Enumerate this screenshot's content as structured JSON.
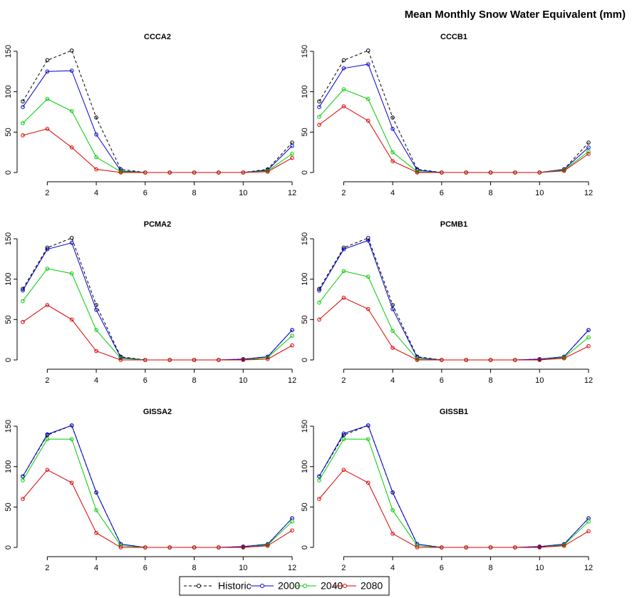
{
  "title": "Mean Monthly Snow Water Equivalent (mm)",
  "legend": "bottom",
  "chart_data": [
    {
      "type": "line",
      "title": "CCCA2",
      "x": [
        1,
        2,
        3,
        4,
        5,
        6,
        7,
        8,
        9,
        10,
        11,
        12
      ],
      "xlim": [
        1,
        12
      ],
      "ylim": [
        0,
        150
      ],
      "xticks": [
        2,
        4,
        6,
        8,
        10,
        12
      ],
      "yticks": [
        0,
        50,
        100,
        150
      ],
      "series": [
        {
          "name": "Historic",
          "color": "#000000",
          "linestyle": "dashed",
          "values": [
            88,
            139,
            151,
            68,
            4,
            0,
            0,
            0,
            0,
            0,
            4,
            37
          ]
        },
        {
          "name": "2000",
          "color": "#0000cc",
          "values": [
            81,
            125,
            126,
            47,
            2,
            0,
            0,
            0,
            0,
            0,
            3,
            33
          ]
        },
        {
          "name": "2040",
          "color": "#00cc00",
          "values": [
            61,
            91,
            76,
            19,
            1,
            0,
            0,
            0,
            0,
            0,
            2,
            23
          ]
        },
        {
          "name": "2080",
          "color": "#dd0000",
          "values": [
            46,
            54,
            31,
            4,
            0,
            0,
            0,
            0,
            0,
            0,
            1,
            18
          ]
        }
      ]
    },
    {
      "type": "line",
      "title": "CCCB1",
      "x": [
        1,
        2,
        3,
        4,
        5,
        6,
        7,
        8,
        9,
        10,
        11,
        12
      ],
      "xlim": [
        1,
        12
      ],
      "ylim": [
        0,
        150
      ],
      "xticks": [
        2,
        4,
        6,
        8,
        10,
        12
      ],
      "yticks": [
        0,
        50,
        100,
        150
      ],
      "series": [
        {
          "name": "Historic",
          "color": "#000000",
          "linestyle": "dashed",
          "values": [
            88,
            139,
            151,
            68,
            4,
            0,
            0,
            0,
            0,
            0,
            4,
            37
          ]
        },
        {
          "name": "2000",
          "color": "#0000cc",
          "values": [
            81,
            129,
            134,
            54,
            3,
            0,
            0,
            0,
            0,
            0,
            4,
            31
          ]
        },
        {
          "name": "2040",
          "color": "#00cc00",
          "values": [
            69,
            103,
            91,
            25,
            1,
            0,
            0,
            0,
            0,
            0,
            3,
            26
          ]
        },
        {
          "name": "2080",
          "color": "#dd0000",
          "values": [
            59,
            82,
            64,
            14,
            0,
            0,
            0,
            0,
            0,
            0,
            2,
            23
          ]
        }
      ]
    },
    {
      "type": "line",
      "title": "PCMA2",
      "x": [
        1,
        2,
        3,
        4,
        5,
        6,
        7,
        8,
        9,
        10,
        11,
        12
      ],
      "xlim": [
        1,
        12
      ],
      "ylim": [
        0,
        150
      ],
      "xticks": [
        2,
        4,
        6,
        8,
        10,
        12
      ],
      "yticks": [
        0,
        50,
        100,
        150
      ],
      "series": [
        {
          "name": "Historic",
          "color": "#000000",
          "linestyle": "dashed",
          "values": [
            88,
            139,
            151,
            68,
            4,
            0,
            0,
            0,
            0,
            1,
            4,
            37
          ]
        },
        {
          "name": "2000",
          "color": "#0000cc",
          "values": [
            86,
            137,
            145,
            62,
            3,
            0,
            0,
            0,
            0,
            1,
            4,
            37
          ]
        },
        {
          "name": "2040",
          "color": "#00cc00",
          "values": [
            73,
            113,
            107,
            37,
            2,
            0,
            0,
            0,
            0,
            0,
            3,
            30
          ]
        },
        {
          "name": "2080",
          "color": "#dd0000",
          "values": [
            47,
            68,
            50,
            11,
            0,
            0,
            0,
            0,
            0,
            0,
            1,
            18
          ]
        }
      ]
    },
    {
      "type": "line",
      "title": "PCMB1",
      "x": [
        1,
        2,
        3,
        4,
        5,
        6,
        7,
        8,
        9,
        10,
        11,
        12
      ],
      "xlim": [
        1,
        12
      ],
      "ylim": [
        0,
        150
      ],
      "xticks": [
        2,
        4,
        6,
        8,
        10,
        12
      ],
      "yticks": [
        0,
        50,
        100,
        150
      ],
      "series": [
        {
          "name": "Historic",
          "color": "#000000",
          "linestyle": "dashed",
          "values": [
            88,
            139,
            151,
            68,
            4,
            0,
            0,
            0,
            0,
            1,
            4,
            37
          ]
        },
        {
          "name": "2000",
          "color": "#0000cc",
          "values": [
            86,
            137,
            148,
            63,
            3,
            0,
            0,
            0,
            0,
            1,
            4,
            37
          ]
        },
        {
          "name": "2040",
          "color": "#00cc00",
          "values": [
            71,
            110,
            103,
            36,
            1,
            0,
            0,
            0,
            0,
            0,
            3,
            28
          ]
        },
        {
          "name": "2080",
          "color": "#dd0000",
          "values": [
            50,
            77,
            63,
            15,
            0,
            0,
            0,
            0,
            0,
            0,
            2,
            17
          ]
        }
      ]
    },
    {
      "type": "line",
      "title": "GISSA2",
      "x": [
        1,
        2,
        3,
        4,
        5,
        6,
        7,
        8,
        9,
        10,
        11,
        12
      ],
      "xlim": [
        1,
        12
      ],
      "ylim": [
        0,
        150
      ],
      "xticks": [
        2,
        4,
        6,
        8,
        10,
        12
      ],
      "yticks": [
        0,
        50,
        100,
        150
      ],
      "series": [
        {
          "name": "Historic",
          "color": "#000000",
          "linestyle": "dashed",
          "values": [
            88,
            139,
            151,
            68,
            4,
            0,
            0,
            0,
            0,
            1,
            4,
            36
          ]
        },
        {
          "name": "2000",
          "color": "#0000cc",
          "values": [
            88,
            140,
            151,
            68,
            4,
            0,
            0,
            0,
            0,
            1,
            4,
            36
          ]
        },
        {
          "name": "2040",
          "color": "#00cc00",
          "values": [
            83,
            134,
            134,
            46,
            2,
            0,
            0,
            0,
            0,
            0,
            3,
            32
          ]
        },
        {
          "name": "2080",
          "color": "#dd0000",
          "values": [
            60,
            96,
            80,
            18,
            0,
            0,
            0,
            0,
            0,
            0,
            2,
            21
          ]
        }
      ]
    },
    {
      "type": "line",
      "title": "GISSB1",
      "x": [
        1,
        2,
        3,
        4,
        5,
        6,
        7,
        8,
        9,
        10,
        11,
        12
      ],
      "xlim": [
        1,
        12
      ],
      "ylim": [
        0,
        150
      ],
      "xticks": [
        2,
        4,
        6,
        8,
        10,
        12
      ],
      "yticks": [
        0,
        50,
        100,
        150
      ],
      "series": [
        {
          "name": "Historic",
          "color": "#000000",
          "linestyle": "dashed",
          "values": [
            88,
            139,
            151,
            68,
            4,
            0,
            0,
            0,
            0,
            1,
            4,
            36
          ]
        },
        {
          "name": "2000",
          "color": "#0000cc",
          "values": [
            88,
            141,
            151,
            68,
            4,
            0,
            0,
            0,
            0,
            1,
            4,
            36
          ]
        },
        {
          "name": "2040",
          "color": "#00cc00",
          "values": [
            83,
            134,
            134,
            46,
            2,
            0,
            0,
            0,
            0,
            0,
            3,
            32
          ]
        },
        {
          "name": "2080",
          "color": "#dd0000",
          "values": [
            60,
            96,
            80,
            17,
            0,
            0,
            0,
            0,
            0,
            0,
            2,
            20
          ]
        }
      ]
    }
  ]
}
